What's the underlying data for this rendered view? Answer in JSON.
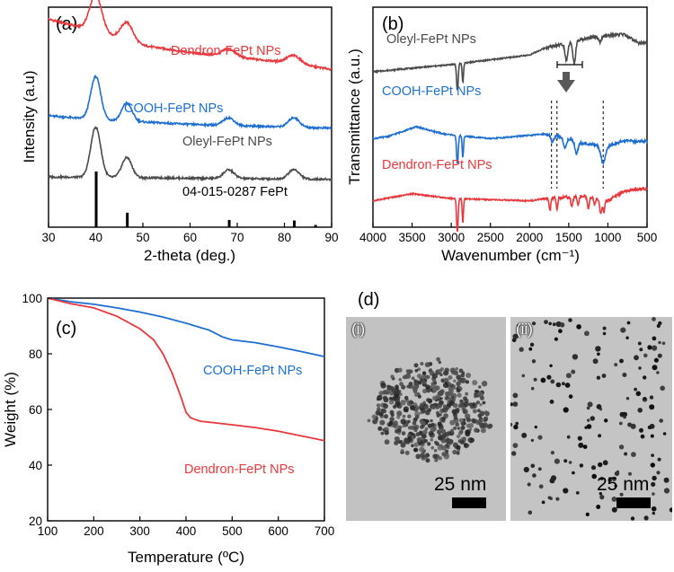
{
  "panels": {
    "a": "(a)",
    "b": "(b)",
    "c": "(c)",
    "d": "(d)"
  },
  "colors": {
    "red": "#e8393e",
    "blue": "#1f6fd1",
    "gray": "#4a4a4a",
    "black": "#000000"
  },
  "chart_data": [
    {
      "id": "a",
      "type": "line",
      "title": "",
      "xlabel": "2-theta (deg.)",
      "ylabel": "Intensity (a.u)",
      "xlim": [
        30,
        90
      ],
      "xticks": [
        30,
        40,
        50,
        60,
        70,
        80,
        90
      ],
      "series": [
        {
          "name": "Dendron-FePt NPs",
          "color": "#e8393e",
          "offset": 3.3,
          "base": [
            [
              30,
              1.05
            ],
            [
              40,
              0.8
            ],
            [
              50,
              0.5
            ],
            [
              60,
              0.35
            ],
            [
              70,
              0.25
            ],
            [
              80,
              0.15
            ],
            [
              90,
              0.0
            ]
          ],
          "peaks": [
            [
              40.0,
              0.75,
              1.8
            ],
            [
              46.6,
              0.38,
              1.8
            ],
            [
              68.2,
              0.16,
              2.0
            ],
            [
              82.0,
              0.17,
              2.0
            ]
          ]
        },
        {
          "name": "COOH-FePt NPs",
          "color": "#1f6fd1",
          "offset": 2.05,
          "base": [
            [
              30,
              0.28
            ],
            [
              40,
              0.2
            ],
            [
              60,
              0.1
            ],
            [
              90,
              0.02
            ]
          ],
          "peaks": [
            [
              40.0,
              0.9,
              1.5
            ],
            [
              46.6,
              0.38,
              1.5
            ],
            [
              68.2,
              0.16,
              1.6
            ],
            [
              82.0,
              0.2,
              1.6
            ]
          ]
        },
        {
          "name": "Oleyl-FePt NPs",
          "color": "#4a4a4a",
          "offset": 0.95,
          "base": [
            [
              30,
              0.1
            ],
            [
              90,
              0.05
            ]
          ],
          "peaks": [
            [
              40.0,
              1.05,
              1.5
            ],
            [
              46.6,
              0.42,
              1.5
            ],
            [
              68.2,
              0.18,
              1.6
            ],
            [
              82.0,
              0.2,
              1.6
            ]
          ]
        }
      ],
      "reference": {
        "name": "04-015-0287 FePt",
        "lines": [
          [
            40.1,
            1.0
          ],
          [
            46.7,
            0.26
          ],
          [
            68.3,
            0.13
          ],
          [
            82.1,
            0.12
          ],
          [
            86.6,
            0.04
          ]
        ]
      },
      "legend_position": "inline labels"
    },
    {
      "id": "b",
      "type": "line",
      "title": "",
      "xlabel": "Wavenumber (cm⁻¹)",
      "ylabel": "Transmittance (a.u.)",
      "xlim": [
        4000,
        500
      ],
      "xticks": [
        4000,
        3500,
        3000,
        2500,
        2000,
        1500,
        1000,
        500
      ],
      "series": [
        {
          "name": "Oleyl-FePt NPs",
          "color": "#4a4a4a",
          "offset": 3.25,
          "base": [
            [
              4000,
              0.0
            ],
            [
              3000,
              0.15
            ],
            [
              2000,
              0.35
            ],
            [
              1800,
              0.5
            ],
            [
              1100,
              0.75
            ],
            [
              800,
              0.78
            ],
            [
              600,
              0.6
            ],
            [
              500,
              0.6
            ]
          ],
          "dips": [
            [
              2922,
              0.55,
              15
            ],
            [
              2852,
              0.4,
              12
            ],
            [
              1530,
              0.35,
              25
            ],
            [
              1430,
              0.45,
              25
            ],
            [
              1100,
              0.12,
              30
            ]
          ]
        },
        {
          "name": "COOH-FePt NPs",
          "color": "#1f6fd1",
          "offset": 1.85,
          "base": [
            [
              4000,
              0.0
            ],
            [
              3800,
              0.05
            ],
            [
              3450,
              0.25
            ],
            [
              3100,
              0.1
            ],
            [
              2500,
              0.0
            ],
            [
              1800,
              0.1
            ],
            [
              1700,
              0.05
            ],
            [
              1600,
              0.05
            ],
            [
              1300,
              -0.1
            ],
            [
              1100,
              -0.15
            ],
            [
              1000,
              -0.15
            ],
            [
              800,
              -0.05
            ],
            [
              500,
              -0.05
            ]
          ],
          "dips": [
            [
              2922,
              0.6,
              15
            ],
            [
              2852,
              0.45,
              12
            ],
            [
              1710,
              0.15,
              20
            ],
            [
              1550,
              0.2,
              30
            ],
            [
              1400,
              0.25,
              30
            ],
            [
              1060,
              0.35,
              40
            ]
          ]
        },
        {
          "name": "Dendron-FePt NPs",
          "color": "#e8393e",
          "offset": 0.55,
          "base": [
            [
              4000,
              0.0
            ],
            [
              3500,
              0.15
            ],
            [
              3000,
              0.05
            ],
            [
              2000,
              0.0
            ],
            [
              1800,
              0.05
            ],
            [
              1300,
              0.1
            ],
            [
              1000,
              0.0
            ],
            [
              800,
              0.2
            ],
            [
              600,
              0.25
            ],
            [
              500,
              0.25
            ]
          ],
          "dips": [
            [
              2922,
              0.7,
              14
            ],
            [
              2852,
              0.5,
              11
            ],
            [
              1740,
              0.25,
              15
            ],
            [
              1650,
              0.22,
              15
            ],
            [
              1460,
              0.2,
              18
            ],
            [
              1380,
              0.18,
              15
            ],
            [
              1250,
              0.25,
              18
            ],
            [
              1170,
              0.15,
              15
            ],
            [
              1090,
              0.3,
              20
            ],
            [
              1050,
              0.25,
              15
            ]
          ]
        }
      ],
      "guides": [
        1720,
        1650,
        1060
      ],
      "legend_position": "inline labels"
    },
    {
      "id": "c",
      "type": "line",
      "title": "",
      "xlabel": "Temperature (ºC)",
      "ylabel": "Weight (%)",
      "xlim": [
        100,
        700
      ],
      "ylim": [
        20,
        100
      ],
      "xticks": [
        100,
        200,
        300,
        400,
        500,
        600,
        700
      ],
      "yticks": [
        20,
        40,
        60,
        80,
        100
      ],
      "series": [
        {
          "name": "COOH-FePt NPs",
          "color": "#1f6fd1",
          "points": [
            [
              100,
              100
            ],
            [
              150,
              98.7
            ],
            [
              200,
              97.8
            ],
            [
              250,
              96.5
            ],
            [
              300,
              95.0
            ],
            [
              350,
              93.2
            ],
            [
              400,
              91.0
            ],
            [
              450,
              88.5
            ],
            [
              480,
              86.0
            ],
            [
              500,
              85.0
            ],
            [
              550,
              84.0
            ],
            [
              600,
              82.5
            ],
            [
              650,
              80.8
            ],
            [
              700,
              79.0
            ]
          ]
        },
        {
          "name": "Dendron-FePt NPs",
          "color": "#e8393e",
          "points": [
            [
              100,
              100
            ],
            [
              150,
              98.0
            ],
            [
              200,
              96.5
            ],
            [
              250,
              93.5
            ],
            [
              300,
              89.0
            ],
            [
              330,
              85.0
            ],
            [
              350,
              80.0
            ],
            [
              370,
              73.0
            ],
            [
              390,
              64.0
            ],
            [
              400,
              59.0
            ],
            [
              410,
              57.0
            ],
            [
              430,
              55.8
            ],
            [
              500,
              54.5
            ],
            [
              550,
              53.5
            ],
            [
              600,
              52.2
            ],
            [
              650,
              50.5
            ],
            [
              700,
              48.8
            ]
          ]
        }
      ],
      "legend_position": "inline labels"
    }
  ],
  "tem": {
    "left": {
      "label": "(i)",
      "scale": "25 nm"
    },
    "right": {
      "label": "(ii)",
      "scale": "25 nm"
    }
  }
}
